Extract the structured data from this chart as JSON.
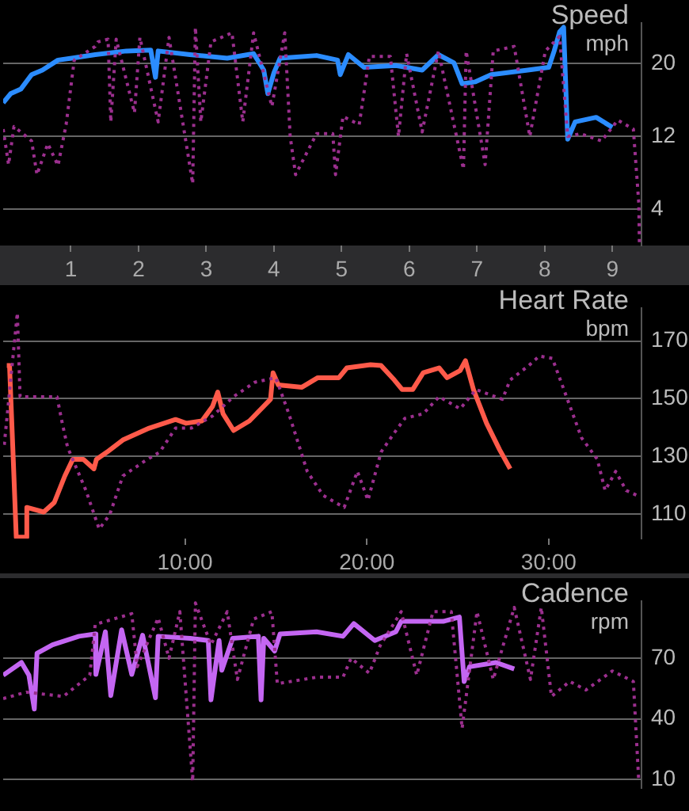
{
  "chart_data": [
    {
      "type": "line",
      "title": "Speed",
      "subtitle": "mph",
      "xlim": [
        0,
        9.43
      ],
      "xticks": [
        1,
        2,
        3,
        4,
        5,
        6,
        7,
        8,
        9
      ],
      "ylim": [
        0,
        24.5
      ],
      "yticks": [
        4,
        12,
        20
      ],
      "grid": "y",
      "series": [
        {
          "color": "#9b2f8e",
          "line_style": "dotted",
          "x": [
            0,
            0.08,
            0.16,
            0.42,
            0.5,
            0.66,
            0.81,
            0.93,
            1.05,
            1.36,
            1.4,
            1.55,
            1.59,
            1.67,
            1.94,
            2.02,
            2.29,
            2.45,
            2.8,
            2.84,
            2.92,
            3.07,
            3.38,
            3.54,
            3.7,
            3.97,
            4.16,
            4.24,
            4.32,
            4.63,
            4.87,
            4.91,
            5.02,
            5.26,
            5.41,
            5.72,
            5.84,
            5.96,
            6.19,
            6.43,
            6.8,
            6.84,
            7.12,
            7.24,
            7.55,
            7.78,
            8.01,
            8.22,
            8.34,
            8.53,
            8.84,
            9.08,
            9.31,
            9.39,
            9.4
          ],
          "values": [
            12.8,
            8.9,
            13.1,
            11.5,
            7.8,
            11.2,
            8.8,
            13.3,
            20.4,
            21.9,
            22.4,
            22.7,
            13.6,
            22.7,
            14.6,
            22.9,
            13.6,
            22.9,
            6.8,
            24.0,
            13.6,
            22.4,
            23.4,
            13.6,
            23.4,
            15.3,
            23.4,
            12.0,
            7.8,
            12.3,
            12.3,
            7.8,
            14.2,
            13.3,
            20.8,
            20.8,
            12.0,
            21.1,
            12.5,
            21.4,
            8.4,
            21.4,
            8.9,
            21.4,
            21.9,
            12.0,
            21.4,
            23.0,
            12.0,
            12.3,
            11.5,
            13.8,
            12.8,
            4.7,
            0.0
          ]
        },
        {
          "color": "#2b8cff",
          "line_style": "solid",
          "x": [
            0,
            0.11,
            0.26,
            0.42,
            0.58,
            0.81,
            1.01,
            1.36,
            1.82,
            2.18,
            2.25,
            2.29,
            2.76,
            3.31,
            3.7,
            3.85,
            3.91,
            4.0,
            4.09,
            4.63,
            4.94,
            4.98,
            5.1,
            5.33,
            5.8,
            6.19,
            6.43,
            6.66,
            6.78,
            6.97,
            7.21,
            7.75,
            8.06,
            8.14,
            8.22,
            8.28,
            8.34,
            8.45,
            8.76,
            9.0
          ],
          "values": [
            15.7,
            16.7,
            17.2,
            18.8,
            19.3,
            20.4,
            20.6,
            21.0,
            21.4,
            21.5,
            18.5,
            21.4,
            21.0,
            20.6,
            21.1,
            19.3,
            16.7,
            19.0,
            20.6,
            20.9,
            20.4,
            18.8,
            21.0,
            19.6,
            19.8,
            19.3,
            21.0,
            20.1,
            17.8,
            18.0,
            18.8,
            19.3,
            19.6,
            21.4,
            23.5,
            24.0,
            11.7,
            13.6,
            14.1,
            13.0
          ]
        }
      ]
    },
    {
      "type": "line",
      "title": "Heart Rate",
      "subtitle": "bpm",
      "xlim": [
        0,
        35.1
      ],
      "xticks": [
        {
          "value": 10,
          "label": "10:00"
        },
        {
          "value": 20,
          "label": "20:00"
        },
        {
          "value": 30,
          "label": "30:00"
        }
      ],
      "ylim": [
        101.5,
        181.5
      ],
      "yticks": [
        110,
        130,
        150,
        170
      ],
      "grid": "y",
      "series": [
        {
          "color": "#9b2f8e",
          "line_style": "dotted",
          "x": [
            0.06,
            0.78,
            0.93,
            1.07,
            2.96,
            3.25,
            3.54,
            4.55,
            5.28,
            5.86,
            6.58,
            7.74,
            8.61,
            9.48,
            10.35,
            11.51,
            12.67,
            13.83,
            14.99,
            15.71,
            16.72,
            17.59,
            18.75,
            19.48,
            20.06,
            20.78,
            21.51,
            22.09,
            23.1,
            23.97,
            25.13,
            26.0,
            27.45,
            27.88,
            28.9,
            29.48,
            30.2,
            30.93,
            31.8,
            32.67,
            33.1,
            33.68,
            34.26,
            34.84
          ],
          "values": [
            134,
            179.8,
            150.7,
            150.7,
            150.7,
            141.5,
            133.2,
            118.2,
            104.8,
            109.8,
            123.2,
            128.2,
            131.5,
            139.8,
            139.8,
            144,
            150.7,
            155.7,
            157.3,
            144.8,
            124.8,
            116.5,
            112.3,
            124.8,
            114.8,
            131.5,
            138.2,
            143.2,
            144.8,
            150.7,
            146.5,
            153.2,
            149.8,
            156.5,
            161.5,
            164.8,
            164,
            151.5,
            136.5,
            129,
            118.2,
            124.8,
            118.2,
            116.5
          ]
        },
        {
          "color": "#ff5a4a",
          "line_style": "solid",
          "x": [
            0.2,
            0.35,
            0.55,
            0.72,
            1.22,
            1.3,
            2.23,
            2.81,
            3.39,
            3.83,
            4.41,
            4.99,
            5.13,
            5.71,
            6.58,
            8.03,
            9.48,
            10.06,
            10.93,
            11.51,
            11.8,
            12.09,
            12.67,
            13.54,
            14.7,
            14.84,
            15.13,
            16.43,
            17.3,
            18.46,
            18.9,
            20.2,
            20.78,
            21.51,
            21.94,
            22.52,
            23.1,
            23.97,
            24.41,
            25.13,
            25.42,
            25.86,
            26.58,
            27.3,
            27.88
          ],
          "values": [
            161.5,
            161.5,
            129.8,
            102,
            102,
            112.3,
            110.7,
            114,
            123.2,
            129,
            129,
            125.7,
            129,
            131.5,
            135.7,
            139.8,
            142.8,
            141.5,
            142.3,
            147.3,
            152.3,
            144.8,
            139,
            142.3,
            149.8,
            159,
            154.8,
            154,
            157.3,
            157.3,
            160.7,
            161.8,
            161.5,
            156.5,
            153.2,
            153.2,
            159,
            160.7,
            157.3,
            159.8,
            163.2,
            153.2,
            141.5,
            132.3,
            125.7
          ]
        }
      ]
    },
    {
      "type": "line",
      "title": "Cadence",
      "subtitle": "rpm",
      "xlim": [
        0,
        9.43
      ],
      "ylim": [
        5.6,
        98.4
      ],
      "yticks": [
        10,
        40,
        70
      ],
      "grid": "y",
      "tick_labels": "y",
      "series": [
        {
          "color": "#9b2f8e",
          "line_style": "dotted",
          "x": [
            0,
            0.34,
            0.89,
            1.28,
            1.36,
            1.9,
            1.98,
            2.29,
            2.45,
            2.61,
            2.8,
            2.84,
            3.07,
            3.31,
            3.46,
            3.7,
            3.97,
            4.05,
            4.63,
            5.02,
            5.14,
            5.41,
            5.57,
            5.88,
            6.11,
            6.35,
            6.62,
            6.78,
            7.0,
            7.24,
            7.55,
            7.79,
            7.95,
            8.1,
            8.37,
            8.61,
            9.0,
            9.31,
            9.39
          ],
          "values": [
            50,
            53.2,
            51.1,
            61.6,
            86.8,
            92.1,
            65.8,
            90,
            70,
            93.1,
            8.9,
            97.4,
            76.7,
            93.1,
            59.5,
            89.4,
            93.1,
            57.4,
            60.6,
            60.6,
            70,
            62.6,
            76.3,
            93.1,
            61.6,
            93.1,
            93.1,
            35.3,
            93.1,
            59.5,
            95.2,
            59.5,
            95.2,
            51.1,
            58.5,
            54.3,
            63.7,
            58.5,
            8.9
          ]
        },
        {
          "color": "#c466f2",
          "line_style": "solid",
          "x": [
            0,
            0.27,
            0.38,
            0.46,
            0.5,
            0.73,
            1.12,
            1.36,
            1.37,
            1.51,
            1.59,
            1.75,
            1.9,
            2.06,
            2.25,
            2.29,
            2.76,
            3.03,
            3.07,
            3.19,
            3.23,
            3.39,
            3.77,
            3.81,
            3.85,
            4.01,
            4.09,
            4.63,
            5.02,
            5.18,
            5.49,
            5.8,
            5.88,
            6.5,
            6.74,
            6.81,
            6.89,
            7.28,
            7.55
          ],
          "values": [
            61.6,
            67.9,
            61.6,
            44.8,
            72.5,
            76.7,
            80.9,
            82,
            62,
            83.1,
            51.5,
            84.1,
            62,
            81.4,
            50.4,
            80.9,
            79.9,
            78.8,
            49.4,
            78.8,
            64.1,
            79.9,
            80.9,
            49.4,
            79.9,
            73.6,
            82,
            83.1,
            80.9,
            87.2,
            78.8,
            83.1,
            88.3,
            88.3,
            90.4,
            58.5,
            65.8,
            67.9,
            64.7
          ]
        }
      ]
    }
  ]
}
